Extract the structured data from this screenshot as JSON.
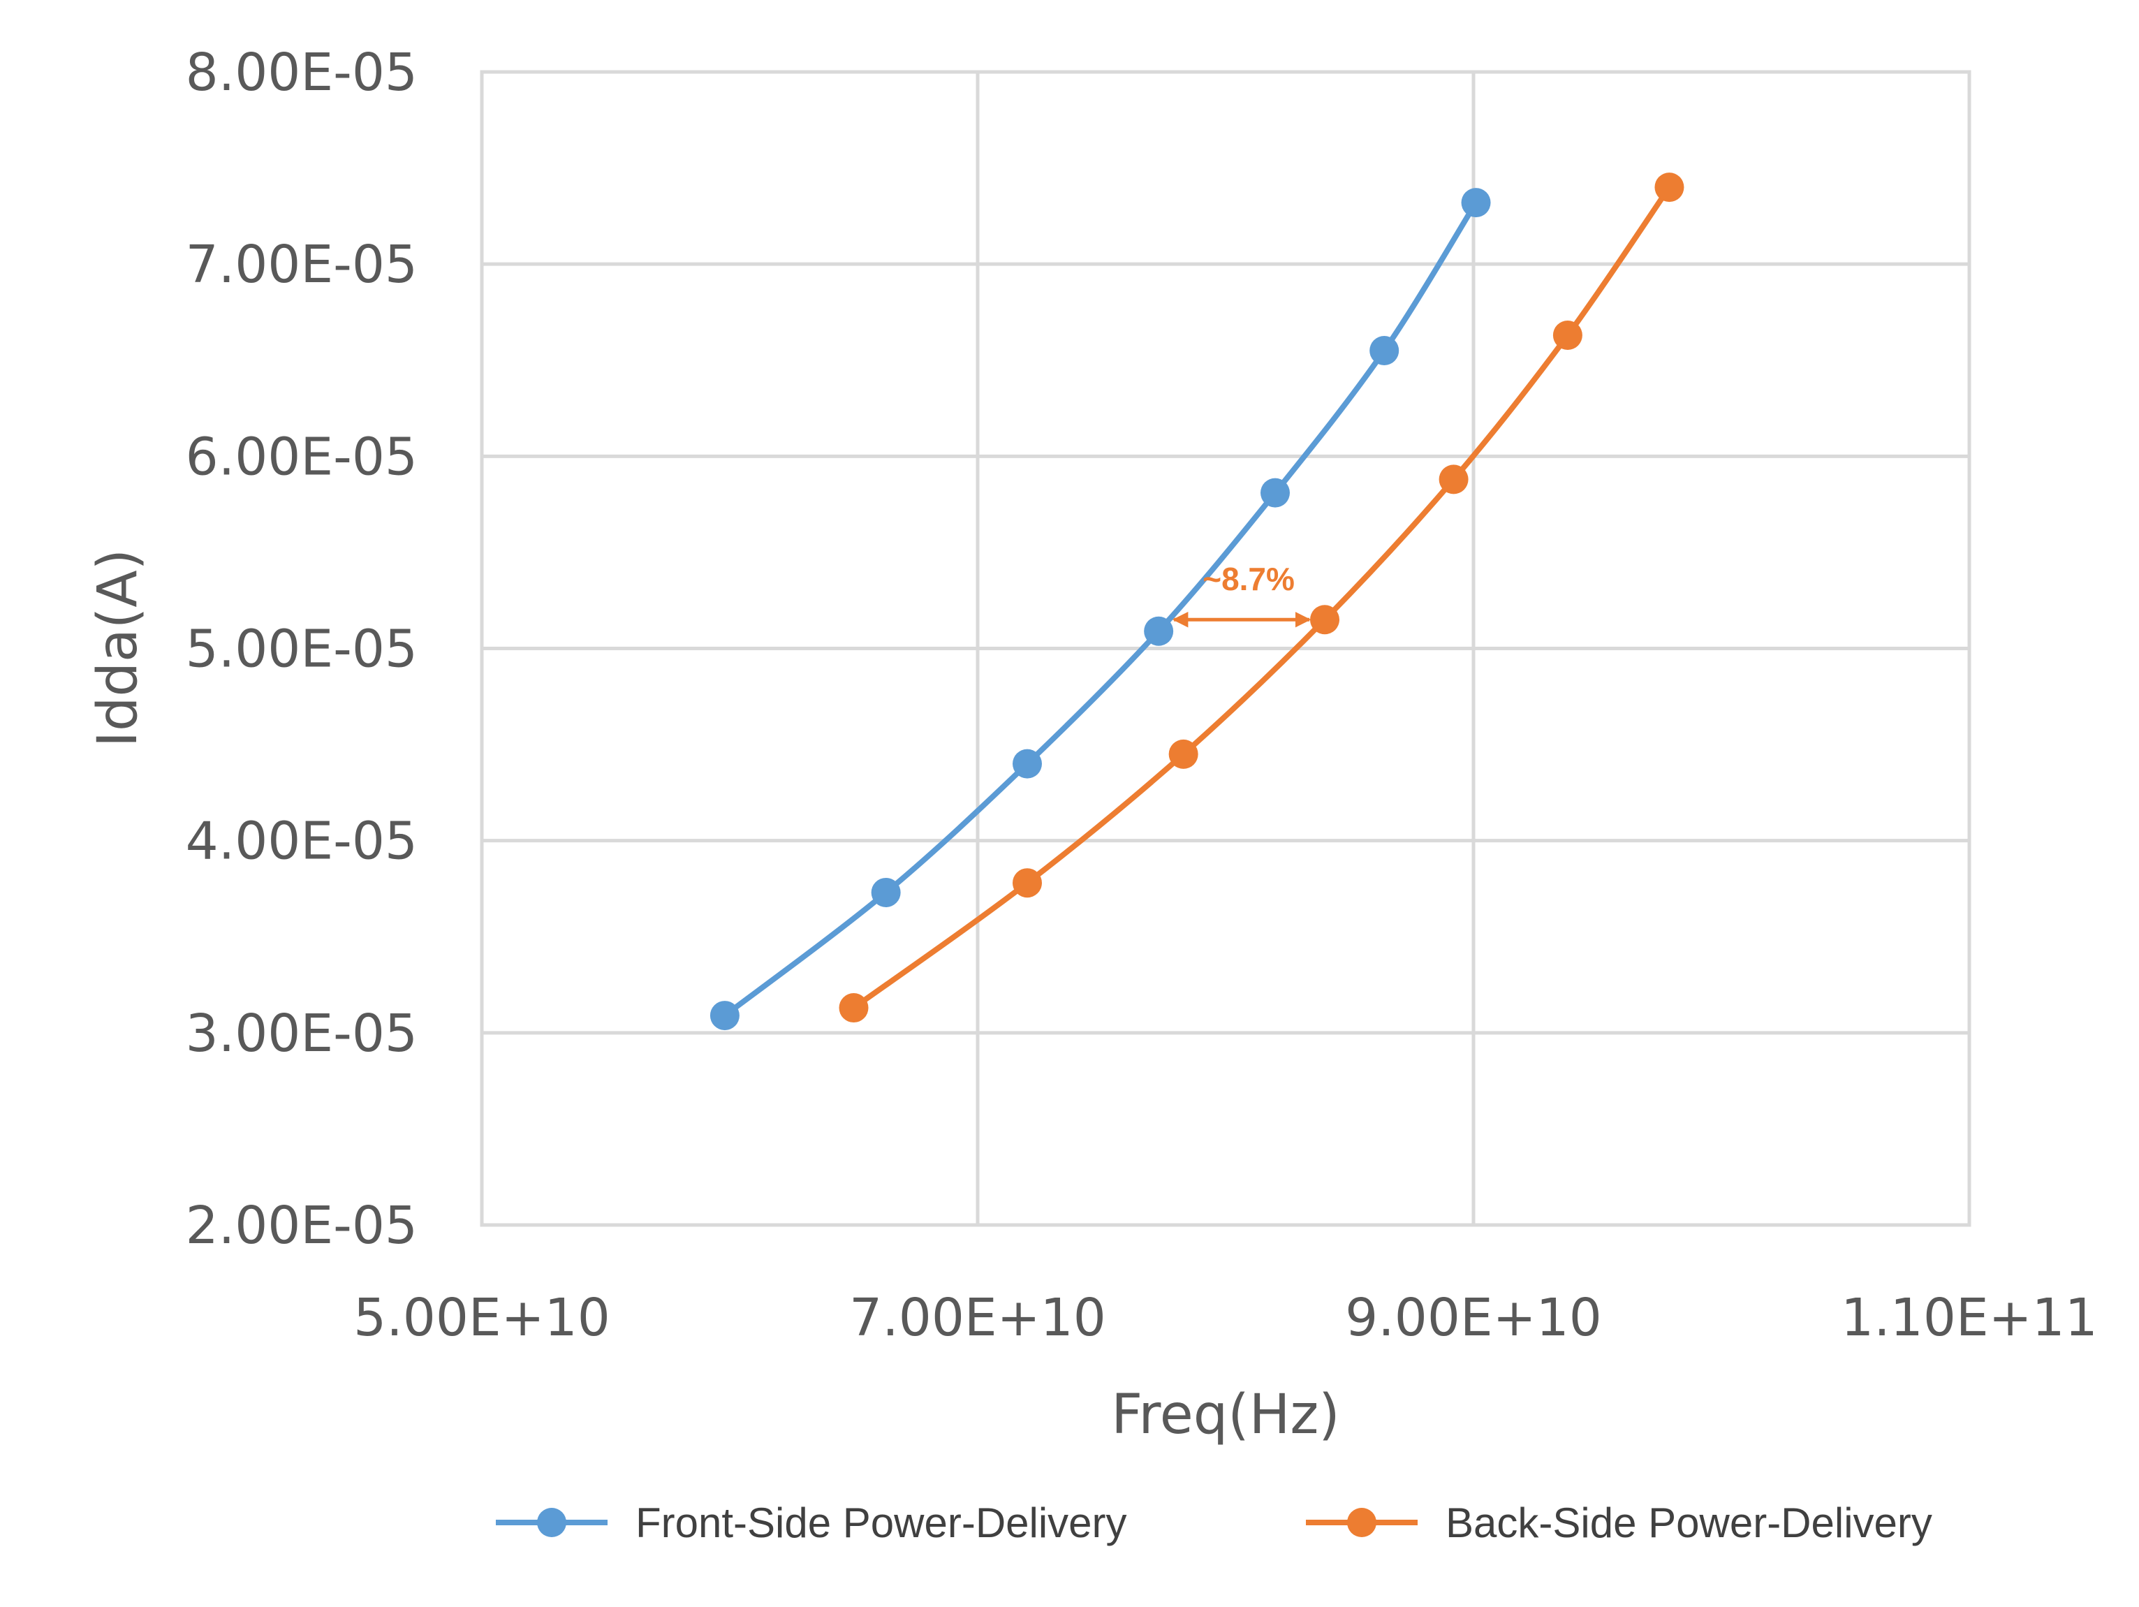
{
  "chart_data": {
    "type": "scatter",
    "xlabel": "Freq(Hz)",
    "ylabel": "Idda(A)",
    "xlim": [
      50000000000.0,
      110000000000.0
    ],
    "ylim": [
      2e-05,
      8e-05
    ],
    "x_ticks": [
      50000000000.0,
      70000000000.0,
      90000000000.0,
      110000000000.0
    ],
    "x_tick_labels": [
      "5.00E+10",
      "7.00E+10",
      "9.00E+10",
      "1.10E+11"
    ],
    "y_ticks": [
      2e-05,
      3e-05,
      4e-05,
      5e-05,
      6e-05,
      7e-05,
      8e-05
    ],
    "y_tick_labels": [
      "2.00E-05",
      "3.00E-05",
      "4.00E-05",
      "5.00E-05",
      "6.00E-05",
      "7.00E-05",
      "8.00E-05"
    ],
    "grid": true,
    "smooth_lines": true,
    "legend_position": "bottom",
    "series": [
      {
        "name": "Front-Side Power-Delivery",
        "color": "#5b9bd5",
        "x": [
          59800000000.0,
          66300000000.0,
          72000000000.0,
          77300000000.0,
          82000000000.0,
          86400000000.0,
          90100000000.0
        ],
        "y": [
          3.09e-05,
          3.73e-05,
          4.4e-05,
          5.09e-05,
          5.81e-05,
          6.55e-05,
          7.32e-05
        ]
      },
      {
        "name": "Back-Side Power-Delivery",
        "color": "#ed7d31",
        "x": [
          65000000000.0,
          72000000000.0,
          78300000000.0,
          84000000000.0,
          89200000000.0,
          93800000000.0,
          97900000000.0
        ],
        "y": [
          3.13e-05,
          3.78e-05,
          4.45e-05,
          5.15e-05,
          5.88e-05,
          6.63e-05,
          7.4e-05
        ]
      }
    ],
    "annotations": [
      {
        "text": "~8.7%",
        "color": "#ed7d31",
        "arrow_from": [
          77300000000.0,
          5.15e-05
        ],
        "arrow_to": [
          84000000000.0,
          5.15e-05
        ]
      }
    ]
  }
}
